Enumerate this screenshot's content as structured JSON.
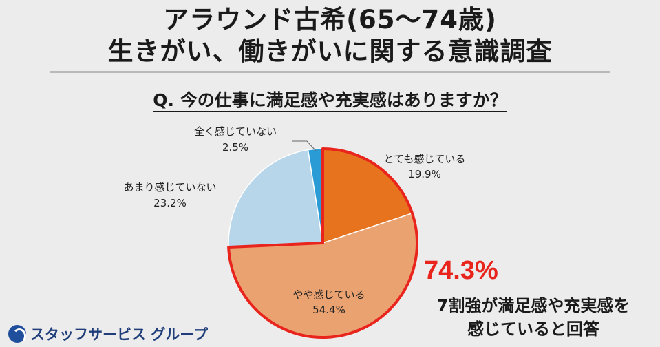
{
  "header": {
    "title_line1": "アラウンド古希(65〜74歳)",
    "title_line2": "生きがい、働きがいに関する意識調査"
  },
  "question": "Q. 今の仕事に満足感や充実感はありますか？",
  "chart_data": {
    "type": "pie",
    "slices": [
      {
        "label": "とても感じている",
        "value": 19.9,
        "display": "19.9%",
        "color": "#e8731f"
      },
      {
        "label": "やや感じている",
        "value": 54.4,
        "display": "54.4%",
        "color": "#eba271"
      },
      {
        "label": "あまり感じていない",
        "value": 23.2,
        "display": "23.2%",
        "color": "#b7d6ea"
      },
      {
        "label": "全く感じていない",
        "value": 2.5,
        "display": "2.5%",
        "color": "#2a9bd5"
      }
    ],
    "start": "12 o'clock, clockwise",
    "highlight": {
      "slices": [
        "とても感じている",
        "やや感じている"
      ],
      "outline_color": "#e8241c"
    }
  },
  "callout": {
    "value": "74.3%",
    "text_line1": "7割強が満足感や充実感を",
    "text_line2": "感じていると回答"
  },
  "logo": {
    "text": "スタッフサービス グループ",
    "color": "#1f3e7a"
  }
}
